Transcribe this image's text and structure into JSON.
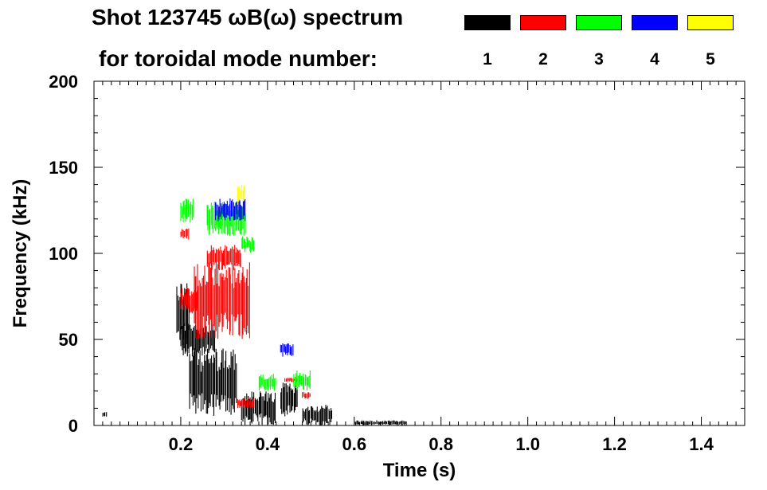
{
  "chart_data": {
    "type": "heatmap",
    "title": "Shot 123745 ωB(ω) spectrum",
    "subtitle": "for toroidal mode number:",
    "xlabel": "Time (s)",
    "ylabel": "Frequency (kHz)",
    "xlim": [
      0.0,
      1.5
    ],
    "ylim": [
      0,
      200
    ],
    "x_ticks": [
      "0.2",
      "0.4",
      "0.6",
      "0.8",
      "1.0",
      "1.2",
      "1.4"
    ],
    "y_ticks": [
      "0",
      "50",
      "100",
      "150",
      "200"
    ],
    "grid": false,
    "legend": [
      {
        "mode": "1",
        "color": "#000000"
      },
      {
        "mode": "2",
        "color": "#ff0000"
      },
      {
        "mode": "3",
        "color": "#00ff00"
      },
      {
        "mode": "4",
        "color": "#0000ff"
      },
      {
        "mode": "5",
        "color": "#ffff00"
      }
    ],
    "series": [
      {
        "mode": 1,
        "color": "#000000",
        "regions": [
          {
            "t": [
              0.19,
              0.22
            ],
            "f": [
              45,
              85
            ]
          },
          {
            "t": [
              0.2,
              0.28
            ],
            "f": [
              40,
              60
            ]
          },
          {
            "t": [
              0.22,
              0.33
            ],
            "f": [
              5,
              45
            ]
          },
          {
            "t": [
              0.34,
              0.42
            ],
            "f": [
              0,
              20
            ]
          },
          {
            "t": [
              0.43,
              0.47
            ],
            "f": [
              5,
              25
            ]
          },
          {
            "t": [
              0.48,
              0.55
            ],
            "f": [
              0,
              12
            ]
          },
          {
            "t": [
              0.02,
              0.03
            ],
            "f": [
              5,
              8
            ]
          },
          {
            "t": [
              0.6,
              0.72
            ],
            "f": [
              0,
              3
            ]
          }
        ]
      },
      {
        "mode": 2,
        "color": "#ff0000",
        "regions": [
          {
            "t": [
              0.2,
              0.24
            ],
            "f": [
              65,
              80
            ]
          },
          {
            "t": [
              0.23,
              0.36
            ],
            "f": [
              50,
              95
            ]
          },
          {
            "t": [
              0.26,
              0.34
            ],
            "f": [
              90,
              105
            ]
          },
          {
            "t": [
              0.2,
              0.22
            ],
            "f": [
              108,
              115
            ]
          },
          {
            "t": [
              0.33,
              0.37
            ],
            "f": [
              10,
              16
            ]
          },
          {
            "t": [
              0.48,
              0.5
            ],
            "f": [
              15,
              20
            ]
          },
          {
            "t": [
              0.44,
              0.47
            ],
            "f": [
              25,
              28
            ]
          }
        ]
      },
      {
        "mode": 3,
        "color": "#00ff00",
        "regions": [
          {
            "t": [
              0.2,
              0.23
            ],
            "f": [
              118,
              132
            ]
          },
          {
            "t": [
              0.26,
              0.35
            ],
            "f": [
              110,
              130
            ]
          },
          {
            "t": [
              0.34,
              0.37
            ],
            "f": [
              100,
              110
            ]
          },
          {
            "t": [
              0.38,
              0.42
            ],
            "f": [
              20,
              30
            ]
          },
          {
            "t": [
              0.46,
              0.5
            ],
            "f": [
              20,
              32
            ]
          }
        ]
      },
      {
        "mode": 4,
        "color": "#0000ff",
        "regions": [
          {
            "t": [
              0.28,
              0.35
            ],
            "f": [
              118,
              132
            ]
          },
          {
            "t": [
              0.43,
              0.46
            ],
            "f": [
              40,
              48
            ]
          }
        ]
      },
      {
        "mode": 5,
        "color": "#ffff00",
        "regions": [
          {
            "t": [
              0.33,
              0.35
            ],
            "f": [
              130,
              140
            ]
          }
        ]
      }
    ]
  }
}
